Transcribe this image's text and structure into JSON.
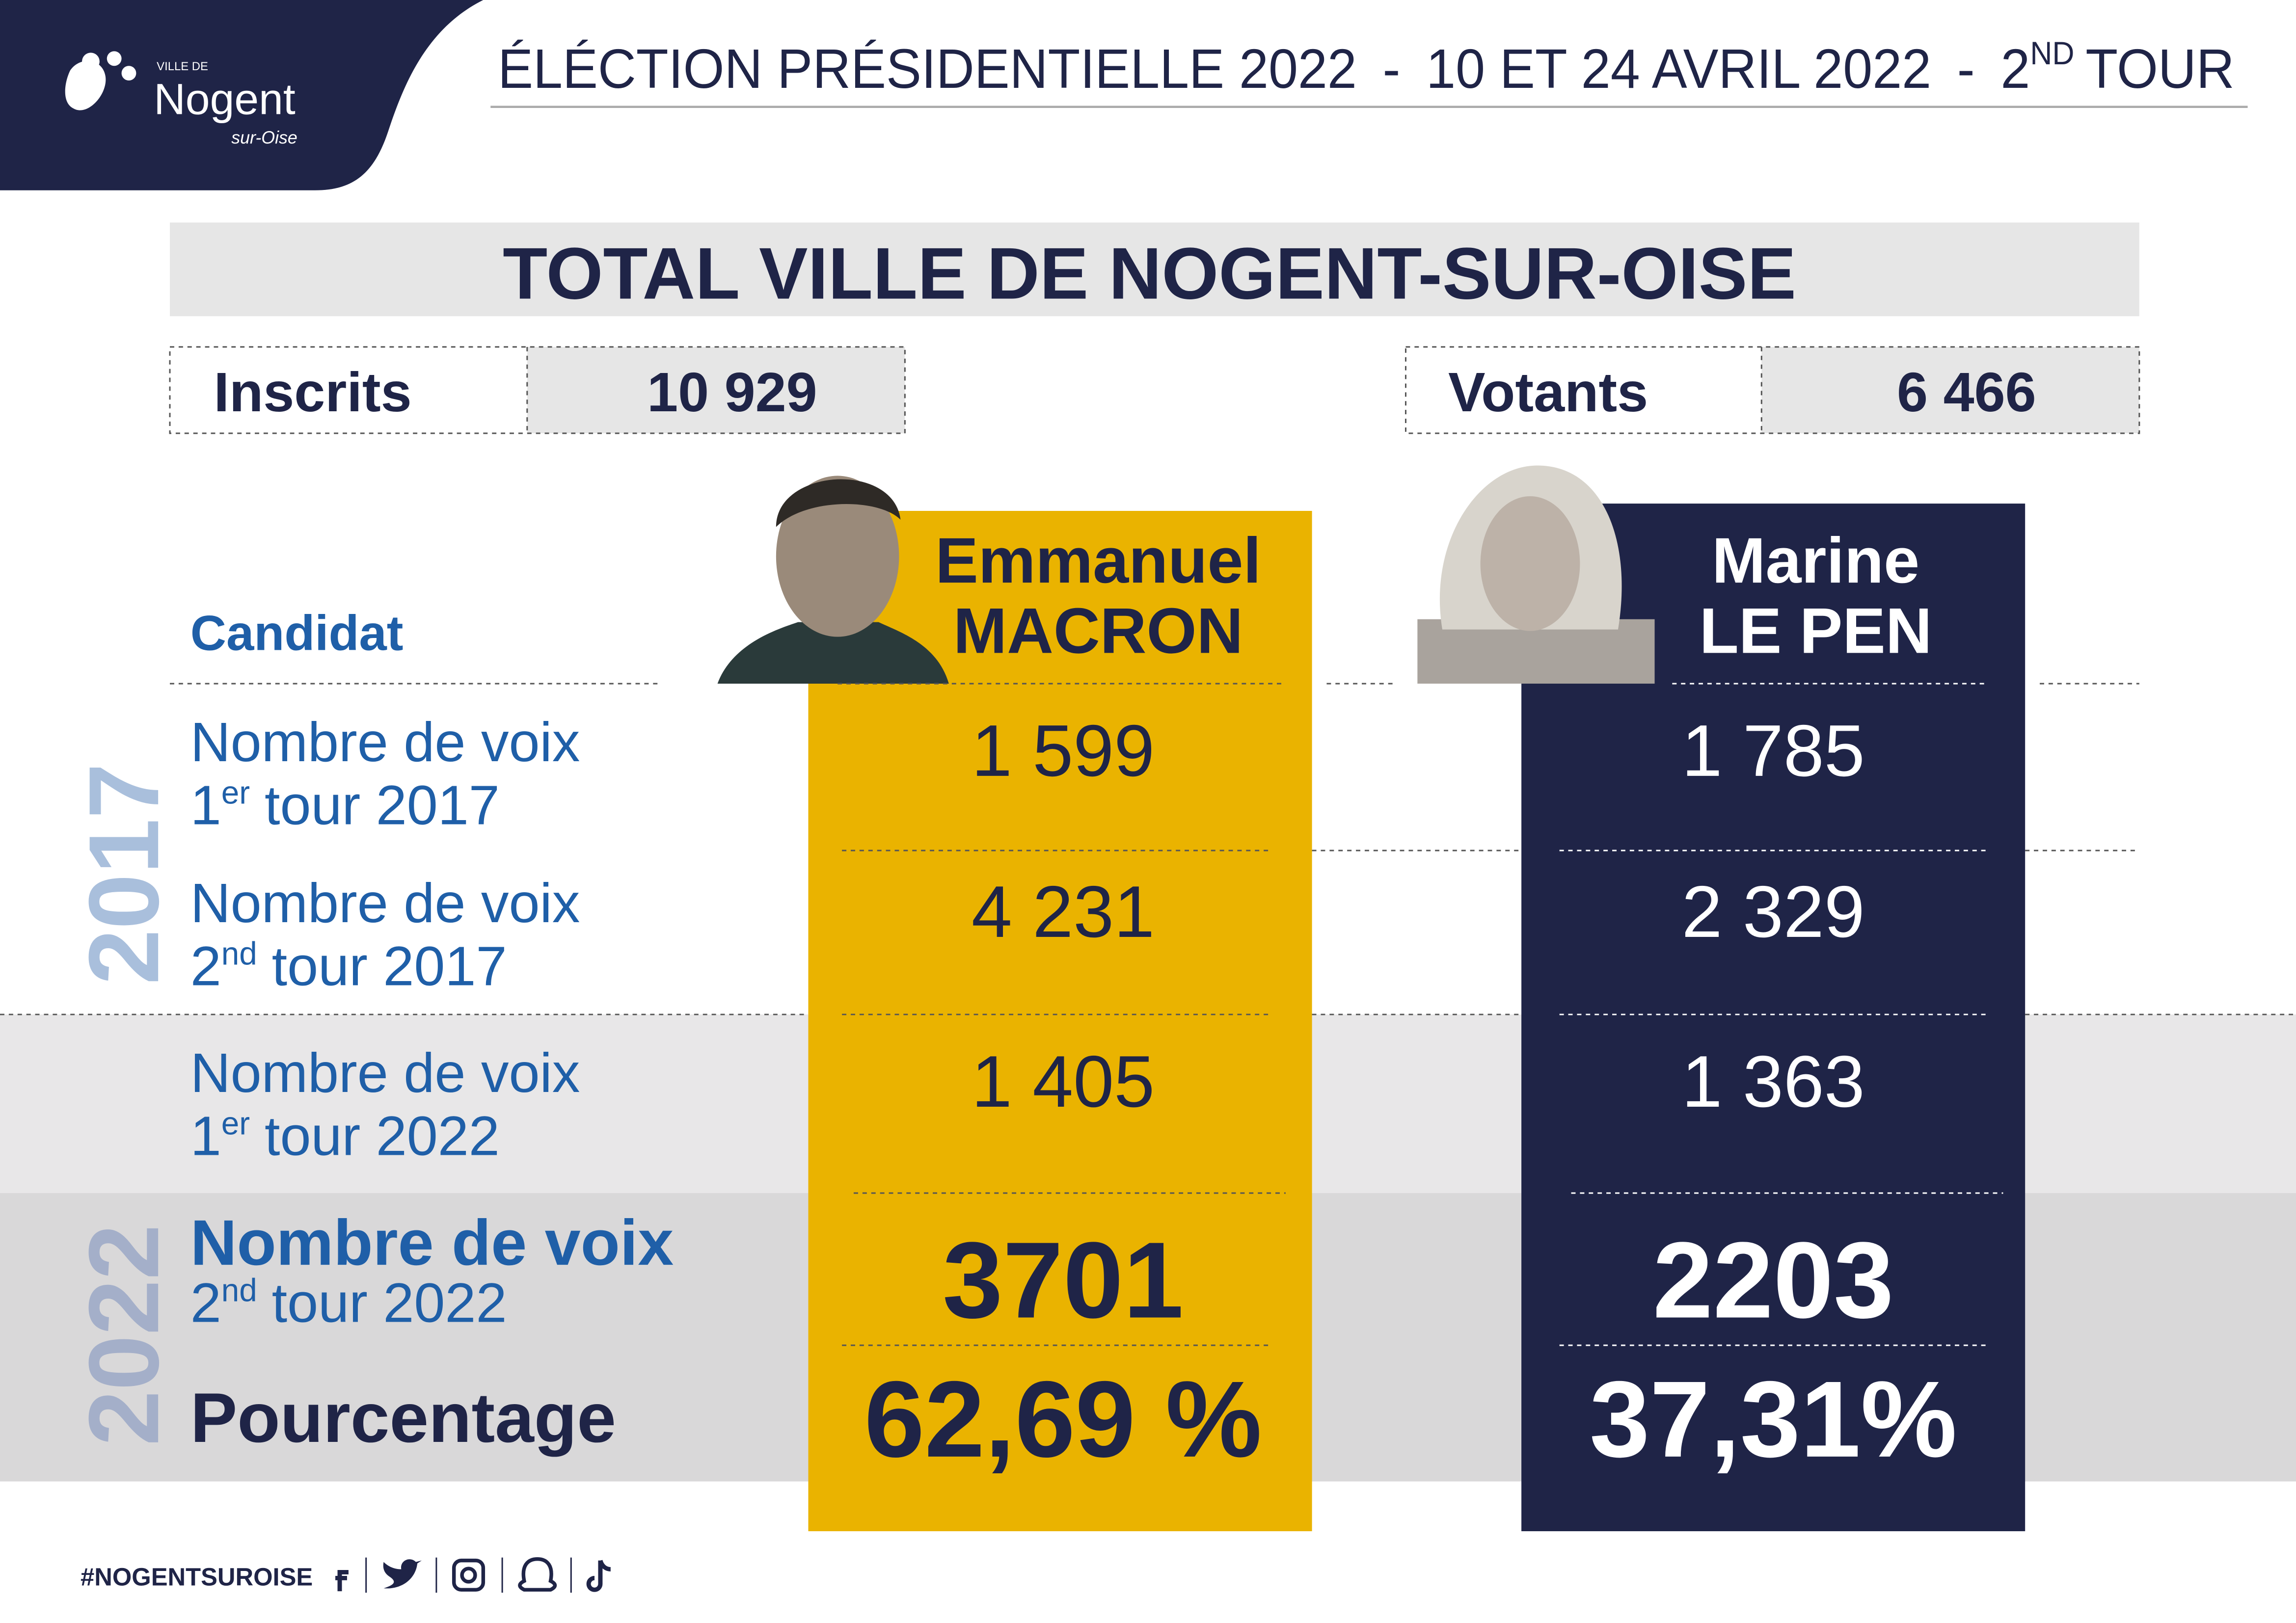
{
  "logo": {
    "small": "VILLE DE",
    "name": "Nogent",
    "sub": "sur-Oise"
  },
  "header": {
    "part1": "ÉLÉCTION PRÉSIDENTIELLE 2022",
    "sep1": "-",
    "dates": "10 ET 24 AVRIL 2022",
    "sep2": "-",
    "round_number": "2",
    "round_sup": "ND",
    "round_word": "TOUR"
  },
  "main_title": "TOTAL VILLE DE NOGENT-SUR-OISE",
  "inscrits": {
    "label": "Inscrits",
    "value": "10 929"
  },
  "votants": {
    "label": "Votants",
    "value": "6 466"
  },
  "candidate_header": "Candidat",
  "candidates": [
    {
      "first_name": "Emmanuel",
      "last_name": "MACRON",
      "values": [
        "1 599",
        "4 231",
        "1 405",
        "3701",
        "62,69 %"
      ]
    },
    {
      "first_name": "Marine",
      "last_name": "LE PEN",
      "values": [
        "1 785",
        "2 329",
        "1 363",
        "2203",
        "37,31%"
      ]
    }
  ],
  "rows": [
    {
      "line1": "Nombre de voix",
      "ordinal": "1",
      "ordinal_sup": "er",
      "rest": "tour 2017"
    },
    {
      "line1": "Nombre de voix",
      "ordinal": "2",
      "ordinal_sup": "nd",
      "rest": "tour 2017"
    },
    {
      "line1": "Nombre de voix",
      "ordinal": "1",
      "ordinal_sup": "er",
      "rest": "tour 2022"
    },
    {
      "line1": "Nombre de voix",
      "ordinal": "2",
      "ordinal_sup": "nd",
      "rest": "tour 2022"
    },
    {
      "line1": "Pourcentage"
    }
  ],
  "years": [
    "2017",
    "2022"
  ],
  "footer": {
    "hashtag": "#NOGENTSUROISE"
  }
}
